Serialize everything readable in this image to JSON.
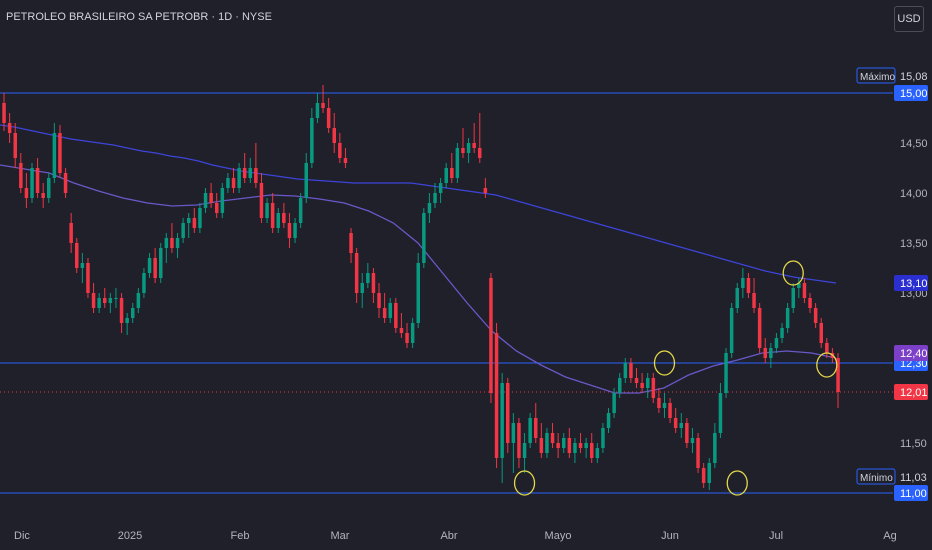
{
  "header": {
    "title": "PETROLEO BRASILEIRO SA PETROBR · 1D · NYSE",
    "currency_button": "USD"
  },
  "chart_data": {
    "type": "candlestick",
    "title": "PETROLEO BRASILEIRO SA PETROBR · 1D · NYSE",
    "ylim": [
      10.83,
      15.48
    ],
    "y_ticks": [
      "15,00",
      "14,50",
      "14,00",
      "13,50",
      "13,00",
      "11,50"
    ],
    "x_ticks": [
      {
        "label": "Dic",
        "x": "2024-12"
      },
      {
        "label": "2025",
        "x": "2025-01"
      },
      {
        "label": "Feb",
        "x": "2025-02"
      },
      {
        "label": "Mar",
        "x": "2025-03"
      },
      {
        "label": "Abr",
        "x": "2025-04"
      },
      {
        "label": "Mayo",
        "x": "2025-05"
      },
      {
        "label": "Jun",
        "x": "2025-06"
      },
      {
        "label": "Jul",
        "x": "2025-07"
      },
      {
        "label": "Ag",
        "x": "2025-08"
      }
    ],
    "horizontal_lines": [
      {
        "value": 15.0,
        "label": "15,00",
        "color": "#2962ff",
        "style": "solid"
      },
      {
        "value": 12.3,
        "label": "12,30",
        "color": "#2962ff",
        "style": "solid"
      },
      {
        "value": 11.0,
        "label": "11,00",
        "color": "#2962ff",
        "style": "solid"
      },
      {
        "value": 12.01,
        "label": "12,01",
        "color": "#f23645",
        "style": "dotted"
      }
    ],
    "price_badges": [
      {
        "value": 13.1,
        "label": "13,10",
        "color": "#2b2fd0"
      },
      {
        "value": 12.4,
        "label": "12,40",
        "color": "#7b3fc8"
      }
    ],
    "max_marker": {
      "label": "Máximo",
      "value_label": "15,08",
      "value": 15.08
    },
    "min_marker": {
      "label": "Mínimo",
      "value_label": "11,03",
      "value": 11.03
    },
    "moving_averages": [
      {
        "color": "#3d44d9"
      },
      {
        "color": "#6a58c9"
      }
    ],
    "colors": {
      "up": "#089981",
      "down": "#f23645",
      "background": "#1f2029",
      "circle": "#e5d84a"
    },
    "candles": [
      {
        "o": 14.9,
        "h": 15.0,
        "l": 14.62,
        "c": 14.7
      },
      {
        "o": 14.7,
        "h": 14.8,
        "l": 14.5,
        "c": 14.6
      },
      {
        "o": 14.6,
        "h": 14.7,
        "l": 14.25,
        "c": 14.35
      },
      {
        "o": 14.3,
        "h": 14.4,
        "l": 14.0,
        "c": 14.05
      },
      {
        "o": 14.05,
        "h": 14.2,
        "l": 13.85,
        "c": 13.95
      },
      {
        "o": 13.95,
        "h": 14.3,
        "l": 13.9,
        "c": 14.25
      },
      {
        "o": 14.25,
        "h": 14.35,
        "l": 13.95,
        "c": 14.0
      },
      {
        "o": 14.0,
        "h": 14.1,
        "l": 13.85,
        "c": 13.95
      },
      {
        "o": 13.95,
        "h": 14.2,
        "l": 13.9,
        "c": 14.15
      },
      {
        "o": 14.15,
        "h": 14.7,
        "l": 14.1,
        "c": 14.6
      },
      {
        "o": 14.6,
        "h": 14.68,
        "l": 14.15,
        "c": 14.2
      },
      {
        "o": 14.2,
        "h": 14.25,
        "l": 13.95,
        "c": 14.0
      },
      {
        "o": 13.7,
        "h": 13.8,
        "l": 13.4,
        "c": 13.5
      },
      {
        "o": 13.5,
        "h": 13.55,
        "l": 13.2,
        "c": 13.25
      },
      {
        "o": 13.25,
        "h": 13.4,
        "l": 13.1,
        "c": 13.3
      },
      {
        "o": 13.3,
        "h": 13.35,
        "l": 12.95,
        "c": 13.0
      },
      {
        "o": 13.0,
        "h": 13.1,
        "l": 12.8,
        "c": 12.85
      },
      {
        "o": 12.85,
        "h": 13.0,
        "l": 12.8,
        "c": 12.95
      },
      {
        "o": 12.95,
        "h": 13.05,
        "l": 12.85,
        "c": 12.9
      },
      {
        "o": 12.9,
        "h": 13.0,
        "l": 12.8,
        "c": 12.95
      },
      {
        "o": 12.95,
        "h": 13.05,
        "l": 12.85,
        "c": 12.95
      },
      {
        "o": 12.95,
        "h": 13.0,
        "l": 12.6,
        "c": 12.7
      },
      {
        "o": 12.7,
        "h": 12.8,
        "l": 12.58,
        "c": 12.75
      },
      {
        "o": 12.75,
        "h": 12.9,
        "l": 12.7,
        "c": 12.85
      },
      {
        "o": 12.85,
        "h": 13.05,
        "l": 12.8,
        "c": 13.0
      },
      {
        "o": 13.0,
        "h": 13.25,
        "l": 12.95,
        "c": 13.2
      },
      {
        "o": 13.2,
        "h": 13.4,
        "l": 13.15,
        "c": 13.35
      },
      {
        "o": 13.35,
        "h": 13.45,
        "l": 13.1,
        "c": 13.15
      },
      {
        "o": 13.15,
        "h": 13.5,
        "l": 13.1,
        "c": 13.45
      },
      {
        "o": 13.45,
        "h": 13.6,
        "l": 13.3,
        "c": 13.55
      },
      {
        "o": 13.55,
        "h": 13.7,
        "l": 13.4,
        "c": 13.45
      },
      {
        "o": 13.45,
        "h": 13.6,
        "l": 13.35,
        "c": 13.55
      },
      {
        "o": 13.55,
        "h": 13.75,
        "l": 13.5,
        "c": 13.7
      },
      {
        "o": 13.7,
        "h": 13.8,
        "l": 13.55,
        "c": 13.75
      },
      {
        "o": 13.75,
        "h": 13.85,
        "l": 13.6,
        "c": 13.65
      },
      {
        "o": 13.65,
        "h": 13.9,
        "l": 13.6,
        "c": 13.85
      },
      {
        "o": 13.85,
        "h": 14.05,
        "l": 13.8,
        "c": 14.0
      },
      {
        "o": 14.0,
        "h": 14.1,
        "l": 13.85,
        "c": 13.9
      },
      {
        "o": 13.9,
        "h": 14.0,
        "l": 13.75,
        "c": 13.8
      },
      {
        "o": 13.8,
        "h": 14.1,
        "l": 13.75,
        "c": 14.05
      },
      {
        "o": 14.05,
        "h": 14.2,
        "l": 14.0,
        "c": 14.15
      },
      {
        "o": 14.15,
        "h": 14.25,
        "l": 14.0,
        "c": 14.05
      },
      {
        "o": 14.05,
        "h": 14.3,
        "l": 14.0,
        "c": 14.25
      },
      {
        "o": 14.25,
        "h": 14.4,
        "l": 14.1,
        "c": 14.15
      },
      {
        "o": 14.15,
        "h": 14.35,
        "l": 14.1,
        "c": 14.25
      },
      {
        "o": 14.25,
        "h": 14.5,
        "l": 14.05,
        "c": 14.1
      },
      {
        "o": 14.1,
        "h": 14.2,
        "l": 13.7,
        "c": 13.75
      },
      {
        "o": 13.75,
        "h": 13.95,
        "l": 13.7,
        "c": 13.9
      },
      {
        "o": 13.9,
        "h": 14.0,
        "l": 13.6,
        "c": 13.65
      },
      {
        "o": 13.65,
        "h": 13.85,
        "l": 13.6,
        "c": 13.8
      },
      {
        "o": 13.8,
        "h": 13.9,
        "l": 13.65,
        "c": 13.7
      },
      {
        "o": 13.7,
        "h": 13.8,
        "l": 13.45,
        "c": 13.55
      },
      {
        "o": 13.55,
        "h": 13.75,
        "l": 13.5,
        "c": 13.7
      },
      {
        "o": 13.7,
        "h": 14.0,
        "l": 13.65,
        "c": 13.95
      },
      {
        "o": 13.95,
        "h": 14.4,
        "l": 13.9,
        "c": 14.3
      },
      {
        "o": 14.3,
        "h": 14.85,
        "l": 14.25,
        "c": 14.75
      },
      {
        "o": 14.75,
        "h": 15.0,
        "l": 14.7,
        "c": 14.9
      },
      {
        "o": 14.9,
        "h": 15.08,
        "l": 14.8,
        "c": 14.85
      },
      {
        "o": 14.85,
        "h": 14.95,
        "l": 14.6,
        "c": 14.65
      },
      {
        "o": 14.65,
        "h": 14.8,
        "l": 14.4,
        "c": 14.5
      },
      {
        "o": 14.5,
        "h": 14.6,
        "l": 14.3,
        "c": 14.35
      },
      {
        "o": 14.35,
        "h": 14.45,
        "l": 14.25,
        "c": 14.3
      },
      {
        "o": 13.6,
        "h": 13.65,
        "l": 13.3,
        "c": 13.4
      },
      {
        "o": 13.4,
        "h": 13.45,
        "l": 12.9,
        "c": 13.0
      },
      {
        "o": 13.0,
        "h": 13.2,
        "l": 12.85,
        "c": 13.1
      },
      {
        "o": 13.1,
        "h": 13.3,
        "l": 13.05,
        "c": 13.2
      },
      {
        "o": 13.2,
        "h": 13.25,
        "l": 12.9,
        "c": 13.0
      },
      {
        "o": 13.0,
        "h": 13.1,
        "l": 12.75,
        "c": 12.85
      },
      {
        "o": 12.85,
        "h": 13.0,
        "l": 12.7,
        "c": 12.75
      },
      {
        "o": 12.75,
        "h": 12.95,
        "l": 12.7,
        "c": 12.9
      },
      {
        "o": 12.9,
        "h": 12.95,
        "l": 12.6,
        "c": 12.65
      },
      {
        "o": 12.65,
        "h": 12.8,
        "l": 12.55,
        "c": 12.6
      },
      {
        "o": 12.6,
        "h": 12.7,
        "l": 12.45,
        "c": 12.5
      },
      {
        "o": 12.5,
        "h": 12.75,
        "l": 12.45,
        "c": 12.7
      },
      {
        "o": 12.7,
        "h": 13.4,
        "l": 12.65,
        "c": 13.3
      },
      {
        "o": 13.3,
        "h": 13.85,
        "l": 13.25,
        "c": 13.8
      },
      {
        "o": 13.8,
        "h": 14.0,
        "l": 13.7,
        "c": 13.9
      },
      {
        "o": 13.9,
        "h": 14.1,
        "l": 13.85,
        "c": 14.0
      },
      {
        "o": 14.0,
        "h": 14.15,
        "l": 13.9,
        "c": 14.1
      },
      {
        "o": 14.1,
        "h": 14.3,
        "l": 14.05,
        "c": 14.25
      },
      {
        "o": 14.25,
        "h": 14.4,
        "l": 14.1,
        "c": 14.15
      },
      {
        "o": 14.15,
        "h": 14.5,
        "l": 14.1,
        "c": 14.45
      },
      {
        "o": 14.45,
        "h": 14.65,
        "l": 14.35,
        "c": 14.4
      },
      {
        "o": 14.4,
        "h": 14.55,
        "l": 14.3,
        "c": 14.5
      },
      {
        "o": 14.5,
        "h": 14.7,
        "l": 14.4,
        "c": 14.45
      },
      {
        "o": 14.45,
        "h": 14.8,
        "l": 14.3,
        "c": 14.35
      },
      {
        "o": 14.05,
        "h": 14.15,
        "l": 13.95,
        "c": 14.0
      },
      {
        "o": 13.15,
        "h": 13.2,
        "l": 11.9,
        "c": 12.0
      },
      {
        "o": 12.6,
        "h": 12.7,
        "l": 11.25,
        "c": 11.35
      },
      {
        "o": 11.35,
        "h": 12.2,
        "l": 11.1,
        "c": 12.1
      },
      {
        "o": 12.1,
        "h": 12.15,
        "l": 11.4,
        "c": 11.5
      },
      {
        "o": 11.5,
        "h": 11.8,
        "l": 11.2,
        "c": 11.7
      },
      {
        "o": 11.7,
        "h": 11.75,
        "l": 11.25,
        "c": 11.35
      },
      {
        "o": 11.35,
        "h": 11.6,
        "l": 11.2,
        "c": 11.5
      },
      {
        "o": 11.5,
        "h": 11.8,
        "l": 11.45,
        "c": 11.75
      },
      {
        "o": 11.75,
        "h": 11.9,
        "l": 11.5,
        "c": 11.55
      },
      {
        "o": 11.55,
        "h": 11.7,
        "l": 11.35,
        "c": 11.4
      },
      {
        "o": 11.4,
        "h": 11.65,
        "l": 11.35,
        "c": 11.6
      },
      {
        "o": 11.6,
        "h": 11.7,
        "l": 11.45,
        "c": 11.5
      },
      {
        "o": 11.5,
        "h": 11.6,
        "l": 11.35,
        "c": 11.45
      },
      {
        "o": 11.45,
        "h": 11.6,
        "l": 11.4,
        "c": 11.55
      },
      {
        "o": 11.55,
        "h": 11.65,
        "l": 11.35,
        "c": 11.4
      },
      {
        "o": 11.4,
        "h": 11.55,
        "l": 11.3,
        "c": 11.5
      },
      {
        "o": 11.5,
        "h": 11.6,
        "l": 11.4,
        "c": 11.45
      },
      {
        "o": 11.45,
        "h": 11.55,
        "l": 11.35,
        "c": 11.5
      },
      {
        "o": 11.5,
        "h": 11.6,
        "l": 11.3,
        "c": 11.35
      },
      {
        "o": 11.35,
        "h": 11.5,
        "l": 11.3,
        "c": 11.45
      },
      {
        "o": 11.45,
        "h": 11.7,
        "l": 11.4,
        "c": 11.65
      },
      {
        "o": 11.65,
        "h": 11.85,
        "l": 11.6,
        "c": 11.8
      },
      {
        "o": 11.8,
        "h": 12.05,
        "l": 11.75,
        "c": 12.0
      },
      {
        "o": 12.0,
        "h": 12.2,
        "l": 11.95,
        "c": 12.15
      },
      {
        "o": 12.15,
        "h": 12.35,
        "l": 12.1,
        "c": 12.3
      },
      {
        "o": 12.3,
        "h": 12.35,
        "l": 12.1,
        "c": 12.15
      },
      {
        "o": 12.15,
        "h": 12.25,
        "l": 12.05,
        "c": 12.1
      },
      {
        "o": 12.1,
        "h": 12.2,
        "l": 12.0,
        "c": 12.05
      },
      {
        "o": 12.05,
        "h": 12.2,
        "l": 11.95,
        "c": 12.15
      },
      {
        "o": 12.15,
        "h": 12.2,
        "l": 11.9,
        "c": 11.95
      },
      {
        "o": 11.95,
        "h": 12.05,
        "l": 11.8,
        "c": 11.85
      },
      {
        "o": 11.85,
        "h": 12.0,
        "l": 11.75,
        "c": 11.9
      },
      {
        "o": 11.9,
        "h": 11.95,
        "l": 11.7,
        "c": 11.75
      },
      {
        "o": 11.75,
        "h": 11.85,
        "l": 11.6,
        "c": 11.65
      },
      {
        "o": 11.65,
        "h": 11.8,
        "l": 11.55,
        "c": 11.7
      },
      {
        "o": 11.7,
        "h": 11.75,
        "l": 11.45,
        "c": 11.5
      },
      {
        "o": 11.5,
        "h": 11.65,
        "l": 11.4,
        "c": 11.55
      },
      {
        "o": 11.55,
        "h": 11.6,
        "l": 11.2,
        "c": 11.25
      },
      {
        "o": 11.25,
        "h": 11.3,
        "l": 11.05,
        "c": 11.1
      },
      {
        "o": 11.1,
        "h": 11.35,
        "l": 11.03,
        "c": 11.3
      },
      {
        "o": 11.3,
        "h": 11.7,
        "l": 11.25,
        "c": 11.6
      },
      {
        "o": 11.6,
        "h": 12.1,
        "l": 11.55,
        "c": 12.0
      },
      {
        "o": 12.0,
        "h": 12.45,
        "l": 11.95,
        "c": 12.4
      },
      {
        "o": 12.4,
        "h": 12.9,
        "l": 12.35,
        "c": 12.85
      },
      {
        "o": 12.85,
        "h": 13.1,
        "l": 12.8,
        "c": 13.05
      },
      {
        "o": 13.05,
        "h": 13.25,
        "l": 12.95,
        "c": 13.15
      },
      {
        "o": 13.15,
        "h": 13.2,
        "l": 12.95,
        "c": 13.0
      },
      {
        "o": 13.0,
        "h": 13.15,
        "l": 12.8,
        "c": 12.85
      },
      {
        "o": 12.85,
        "h": 12.9,
        "l": 12.4,
        "c": 12.45
      },
      {
        "o": 12.45,
        "h": 12.55,
        "l": 12.3,
        "c": 12.35
      },
      {
        "o": 12.35,
        "h": 12.5,
        "l": 12.25,
        "c": 12.45
      },
      {
        "o": 12.45,
        "h": 12.6,
        "l": 12.4,
        "c": 12.55
      },
      {
        "o": 12.55,
        "h": 12.7,
        "l": 12.5,
        "c": 12.65
      },
      {
        "o": 12.65,
        "h": 12.9,
        "l": 12.6,
        "c": 12.85
      },
      {
        "o": 12.85,
        "h": 13.1,
        "l": 12.8,
        "c": 13.05
      },
      {
        "o": 13.05,
        "h": 13.15,
        "l": 12.95,
        "c": 13.1
      },
      {
        "o": 13.1,
        "h": 13.15,
        "l": 12.9,
        "c": 12.95
      },
      {
        "o": 12.95,
        "h": 13.0,
        "l": 12.8,
        "c": 12.85
      },
      {
        "o": 12.85,
        "h": 12.9,
        "l": 12.65,
        "c": 12.7
      },
      {
        "o": 12.7,
        "h": 12.75,
        "l": 12.45,
        "c": 12.5
      },
      {
        "o": 12.5,
        "h": 12.55,
        "l": 12.35,
        "c": 12.4
      },
      {
        "o": 12.4,
        "h": 12.45,
        "l": 12.3,
        "c": 12.35
      },
      {
        "o": 12.35,
        "h": 12.4,
        "l": 11.85,
        "c": 12.01
      }
    ],
    "ma1": [
      14.68,
      14.66,
      14.63,
      14.6,
      14.57,
      14.54,
      14.52,
      14.5,
      14.48,
      14.45,
      14.42,
      14.4,
      14.37,
      14.35,
      14.32,
      14.28,
      14.25,
      14.22,
      14.2,
      14.18,
      14.16,
      14.14,
      14.13,
      14.12,
      14.11,
      14.1,
      14.1,
      14.1,
      14.1,
      14.1,
      14.08,
      14.06,
      14.04,
      14.02,
      14.0,
      13.98,
      13.94,
      13.9,
      13.86,
      13.82,
      13.78,
      13.74,
      13.7,
      13.66,
      13.62,
      13.58,
      13.54,
      13.5,
      13.46,
      13.42,
      13.38,
      13.34,
      13.3,
      13.26,
      13.22,
      13.19,
      13.16,
      13.14,
      13.12,
      13.1
    ],
    "ma2": [
      14.28,
      14.24,
      14.2,
      14.1,
      14.02,
      13.95,
      13.9,
      13.87,
      13.88,
      13.92,
      13.95,
      13.98,
      13.97,
      13.94,
      13.9,
      13.82,
      13.7,
      13.5,
      13.2,
      12.9,
      12.62,
      12.42,
      12.28,
      12.16,
      12.08,
      12.0,
      12.0,
      12.05,
      12.18,
      12.27,
      12.33,
      12.4,
      12.42,
      12.4,
      12.35
    ]
  }
}
